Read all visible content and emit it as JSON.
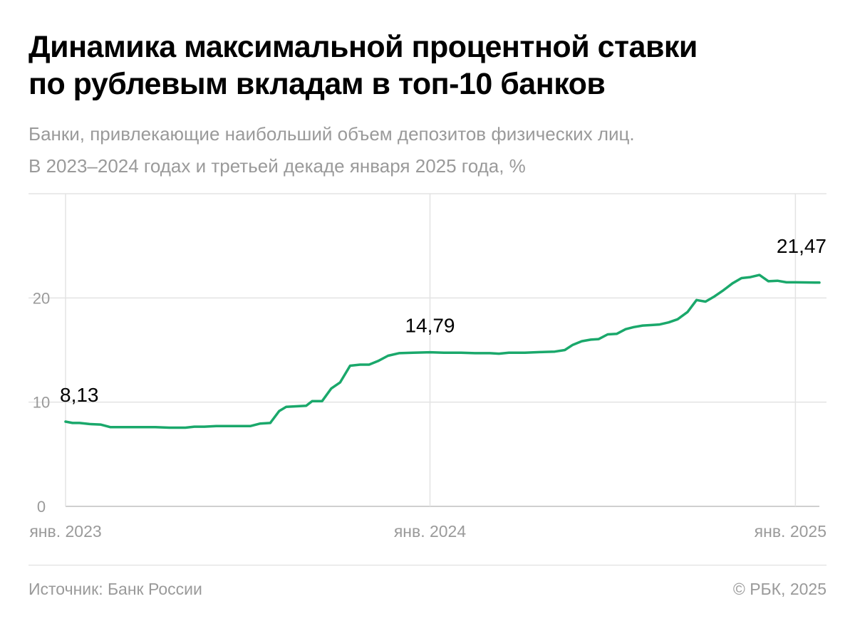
{
  "header": {
    "title_line1": "Динамика максимальной процентной ставки",
    "title_line2": "по рублевым вкладам в топ-10 банков",
    "subtitle_line1": "Банки, привлекающие наибольший объем депозитов физических лиц.",
    "subtitle_line2": "В 2023–2024 годах и третьей декаде января 2025 года, %"
  },
  "footer": {
    "source": "Источник: Банк России",
    "copyright": "© РБК, 2025"
  },
  "colors": {
    "line": "#1aa86b",
    "grid": "#e3e3e3",
    "tick_text": "#9a9a9a"
  },
  "chart_data": {
    "type": "line",
    "grid": true,
    "ylim": [
      0,
      30
    ],
    "yticks": [
      0,
      10,
      20
    ],
    "ytick_labels": [
      "0",
      "10",
      "20"
    ],
    "xlim": [
      "2023-01-01",
      "2025-01-25"
    ],
    "xticks": [
      "2023-01-01",
      "2024-01-01",
      "2025-01-01"
    ],
    "xtick_labels": [
      "янв. 2023",
      "янв. 2024",
      "янв. 2025"
    ],
    "annotations": [
      {
        "date": "2023-01-01",
        "value": 8.13,
        "label": "8,13"
      },
      {
        "date": "2024-01-01",
        "value": 14.79,
        "label": "14,79"
      },
      {
        "date": "2025-01-25",
        "value": 21.47,
        "label": "21,47"
      }
    ],
    "series": [
      {
        "points": [
          [
            "2023-01-01",
            8.13
          ],
          [
            "2023-01-08",
            8.0
          ],
          [
            "2023-01-15",
            8.0
          ],
          [
            "2023-01-25",
            7.9
          ],
          [
            "2023-02-05",
            7.85
          ],
          [
            "2023-02-15",
            7.6
          ],
          [
            "2023-03-01",
            7.6
          ],
          [
            "2023-03-15",
            7.6
          ],
          [
            "2023-04-01",
            7.6
          ],
          [
            "2023-04-15",
            7.55
          ],
          [
            "2023-05-01",
            7.55
          ],
          [
            "2023-05-10",
            7.65
          ],
          [
            "2023-05-20",
            7.65
          ],
          [
            "2023-06-01",
            7.7
          ],
          [
            "2023-06-15",
            7.7
          ],
          [
            "2023-06-25",
            7.7
          ],
          [
            "2023-07-05",
            7.7
          ],
          [
            "2023-07-15",
            7.95
          ],
          [
            "2023-07-25",
            8.0
          ],
          [
            "2023-08-03",
            9.15
          ],
          [
            "2023-08-10",
            9.55
          ],
          [
            "2023-08-20",
            9.6
          ],
          [
            "2023-08-30",
            9.65
          ],
          [
            "2023-09-05",
            10.1
          ],
          [
            "2023-09-15",
            10.1
          ],
          [
            "2023-09-24",
            11.3
          ],
          [
            "2023-10-03",
            11.9
          ],
          [
            "2023-10-13",
            13.5
          ],
          [
            "2023-10-23",
            13.6
          ],
          [
            "2023-11-01",
            13.6
          ],
          [
            "2023-11-10",
            13.95
          ],
          [
            "2023-11-20",
            14.45
          ],
          [
            "2023-12-01",
            14.7
          ],
          [
            "2023-12-15",
            14.75
          ],
          [
            "2024-01-01",
            14.79
          ],
          [
            "2024-01-15",
            14.75
          ],
          [
            "2024-02-01",
            14.75
          ],
          [
            "2024-02-15",
            14.7
          ],
          [
            "2024-03-01",
            14.7
          ],
          [
            "2024-03-10",
            14.65
          ],
          [
            "2024-03-20",
            14.75
          ],
          [
            "2024-04-05",
            14.75
          ],
          [
            "2024-04-20",
            14.8
          ],
          [
            "2024-05-05",
            14.85
          ],
          [
            "2024-05-15",
            15.0
          ],
          [
            "2024-05-23",
            15.5
          ],
          [
            "2024-06-01",
            15.85
          ],
          [
            "2024-06-10",
            16.0
          ],
          [
            "2024-06-18",
            16.05
          ],
          [
            "2024-06-27",
            16.5
          ],
          [
            "2024-07-06",
            16.55
          ],
          [
            "2024-07-15",
            17.0
          ],
          [
            "2024-07-23",
            17.2
          ],
          [
            "2024-08-01",
            17.35
          ],
          [
            "2024-08-10",
            17.4
          ],
          [
            "2024-08-18",
            17.45
          ],
          [
            "2024-08-27",
            17.65
          ],
          [
            "2024-09-05",
            17.95
          ],
          [
            "2024-09-15",
            18.65
          ],
          [
            "2024-09-24",
            19.8
          ],
          [
            "2024-10-03",
            19.65
          ],
          [
            "2024-10-12",
            20.15
          ],
          [
            "2024-10-21",
            20.75
          ],
          [
            "2024-10-30",
            21.4
          ],
          [
            "2024-11-08",
            21.9
          ],
          [
            "2024-11-17",
            22.0
          ],
          [
            "2024-11-26",
            22.2
          ],
          [
            "2024-12-05",
            21.6
          ],
          [
            "2024-12-14",
            21.65
          ],
          [
            "2024-12-23",
            21.5
          ],
          [
            "2025-01-01",
            21.5
          ],
          [
            "2025-01-25",
            21.47
          ]
        ]
      }
    ]
  }
}
